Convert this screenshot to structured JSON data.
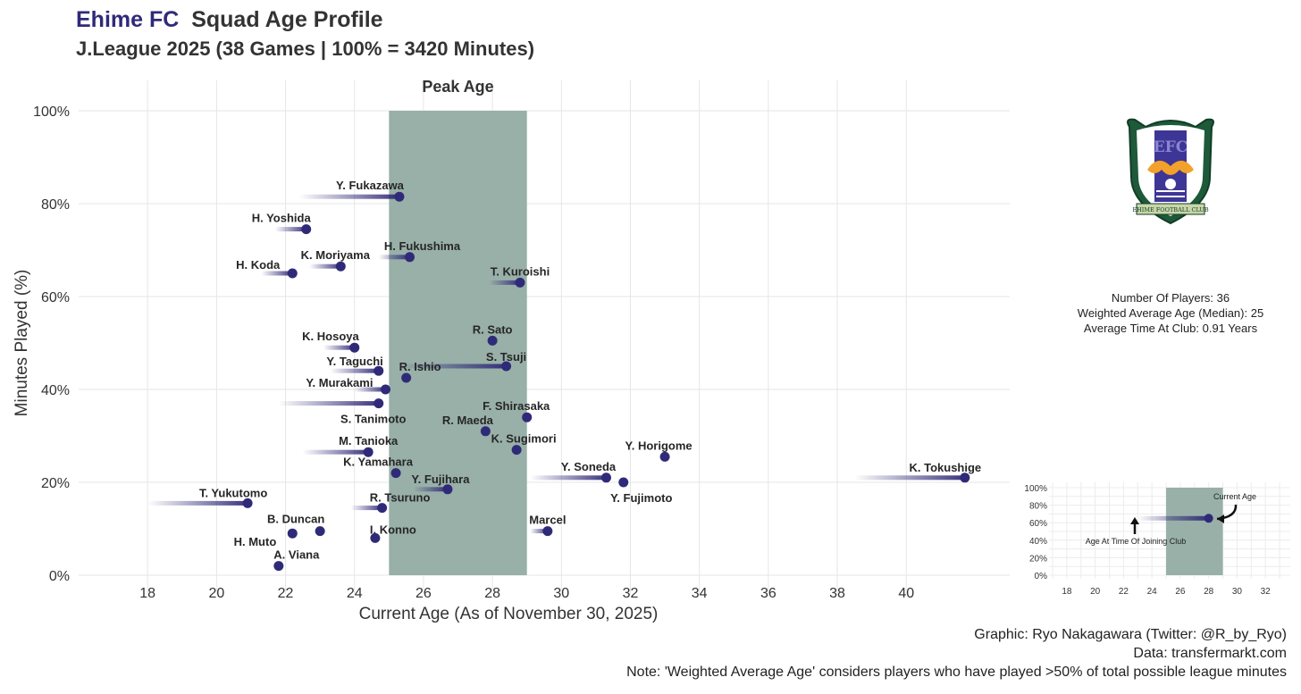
{
  "header": {
    "team": "Ehime FC",
    "title_rest": "Squad Age Profile",
    "subtitle": "J.League 2025 (38 Games | 100% = 3420 Minutes)"
  },
  "colors": {
    "team_accent": "#2f2a78",
    "point": "#2f2a78",
    "peak_band": "#98b0a8",
    "grid": "#e6e6e6"
  },
  "chart_data": {
    "type": "scatter",
    "title": "Ehime FC Squad Age Profile",
    "subtitle": "J.League 2025 (38 Games | 100% = 3420 Minutes)",
    "xlabel": "Current Age (As of November 30, 2025)",
    "ylabel": "Minutes Played (%)",
    "xlim": [
      16,
      43
    ],
    "ylim": [
      0,
      100
    ],
    "x_ticks": [
      18,
      20,
      22,
      24,
      26,
      28,
      30,
      32,
      34,
      36,
      38,
      40
    ],
    "y_ticks": [
      0,
      20,
      40,
      60,
      80,
      100
    ],
    "y_tick_labels": [
      "0%",
      "20%",
      "40%",
      "60%",
      "80%",
      "100%"
    ],
    "peak_age": {
      "label": "Peak Age",
      "from": 25,
      "to": 29
    },
    "grid": true,
    "players": [
      {
        "name": "Y. Fukazawa",
        "age": 25.3,
        "minutes_pct": 81.5,
        "age_joined": 22.4
      },
      {
        "name": "H. Yoshida",
        "age": 22.6,
        "minutes_pct": 74.5,
        "age_joined": 21.7
      },
      {
        "name": "H. Fukushima",
        "age": 25.6,
        "minutes_pct": 68.5,
        "age_joined": 24.7
      },
      {
        "name": "K. Moriyama",
        "age": 23.6,
        "minutes_pct": 66.5,
        "age_joined": 22.7
      },
      {
        "name": "H. Koda",
        "age": 22.2,
        "minutes_pct": 65.0,
        "age_joined": 21.3
      },
      {
        "name": "T. Kuroishi",
        "age": 28.8,
        "minutes_pct": 63.0,
        "age_joined": 27.9
      },
      {
        "name": "R. Sato",
        "age": 28.0,
        "minutes_pct": 50.5,
        "age_joined": 28.0
      },
      {
        "name": "K. Hosoya",
        "age": 24.0,
        "minutes_pct": 49.0,
        "age_joined": 23.1
      },
      {
        "name": "S. Tsuji",
        "age": 28.4,
        "minutes_pct": 45.0,
        "age_joined": 25.3
      },
      {
        "name": "Y. Taguchi",
        "age": 24.7,
        "minutes_pct": 44.0,
        "age_joined": 23.3
      },
      {
        "name": "R. Ishio",
        "age": 25.5,
        "minutes_pct": 42.5,
        "age_joined": 25.5
      },
      {
        "name": "Y. Murakami",
        "age": 24.9,
        "minutes_pct": 40.0,
        "age_joined": 24.0
      },
      {
        "name": "S. Tanimoto",
        "age": 24.7,
        "minutes_pct": 37.0,
        "age_joined": 21.8
      },
      {
        "name": "F. Shirasaka",
        "age": 29.0,
        "minutes_pct": 34.0,
        "age_joined": 29.0
      },
      {
        "name": "R. Maeda",
        "age": 27.8,
        "minutes_pct": 31.0,
        "age_joined": 27.8
      },
      {
        "name": "K. Sugimori",
        "age": 28.7,
        "minutes_pct": 27.0,
        "age_joined": 28.7
      },
      {
        "name": "M. Tanioka",
        "age": 24.4,
        "minutes_pct": 26.5,
        "age_joined": 22.5
      },
      {
        "name": "Y. Horigome",
        "age": 33.0,
        "minutes_pct": 25.5,
        "age_joined": 33.0
      },
      {
        "name": "K. Yamahara",
        "age": 25.2,
        "minutes_pct": 22.0,
        "age_joined": 25.2
      },
      {
        "name": "Y. Soneda",
        "age": 31.3,
        "minutes_pct": 21.0,
        "age_joined": 29.1
      },
      {
        "name": "K. Tokushige",
        "age": 41.7,
        "minutes_pct": 21.0,
        "age_joined": 38.5
      },
      {
        "name": "Y. Fujimoto",
        "age": 31.8,
        "minutes_pct": 20.0,
        "age_joined": 31.8
      },
      {
        "name": "Y. Fujihara",
        "age": 26.7,
        "minutes_pct": 18.5,
        "age_joined": 25.7
      },
      {
        "name": "T. Yukutomo",
        "age": 20.9,
        "minutes_pct": 15.5,
        "age_joined": 18.0
      },
      {
        "name": "R. Tsuruno",
        "age": 24.8,
        "minutes_pct": 14.5,
        "age_joined": 23.9
      },
      {
        "name": "Marcel",
        "age": 29.6,
        "minutes_pct": 9.5,
        "age_joined": 29.1
      },
      {
        "name": "B. Duncan",
        "age": 23.0,
        "minutes_pct": 9.5,
        "age_joined": 23.0
      },
      {
        "name": "H. Muto",
        "age": 22.2,
        "minutes_pct": 9.0,
        "age_joined": 22.2
      },
      {
        "name": "I. Konno",
        "age": 24.6,
        "minutes_pct": 8.0,
        "age_joined": 24.6
      },
      {
        "name": "A. Viana",
        "age": 21.8,
        "minutes_pct": 2.0,
        "age_joined": 21.8
      }
    ]
  },
  "side_panel": {
    "players_count": "Number Of Players: 36",
    "weighted_avg": "Weighted Average Age (Median): 25",
    "avg_time": "Average Time At Club: 0.91 Years"
  },
  "logo": {
    "letters": "EFC",
    "banner": "EHIME FOOTBALL CLUB"
  },
  "legend_chart": {
    "x_ticks": [
      18,
      20,
      22,
      24,
      26,
      28,
      30,
      32
    ],
    "y_tick_labels": [
      "0%",
      "20%",
      "40%",
      "60%",
      "80%",
      "100%"
    ],
    "example_age": 28,
    "example_minutes_pct": 65,
    "example_age_joined": 23,
    "current_age_label": "Current Age",
    "joined_label": "Age At Time Of Joining Club"
  },
  "captions": {
    "graphic": "Graphic: Ryo Nakagawara (Twitter: @R_by_Ryo)",
    "data": "Data: transfermarkt.com",
    "note": "Note: 'Weighted Average Age' considers players who have played >50% of total possible league minutes"
  }
}
